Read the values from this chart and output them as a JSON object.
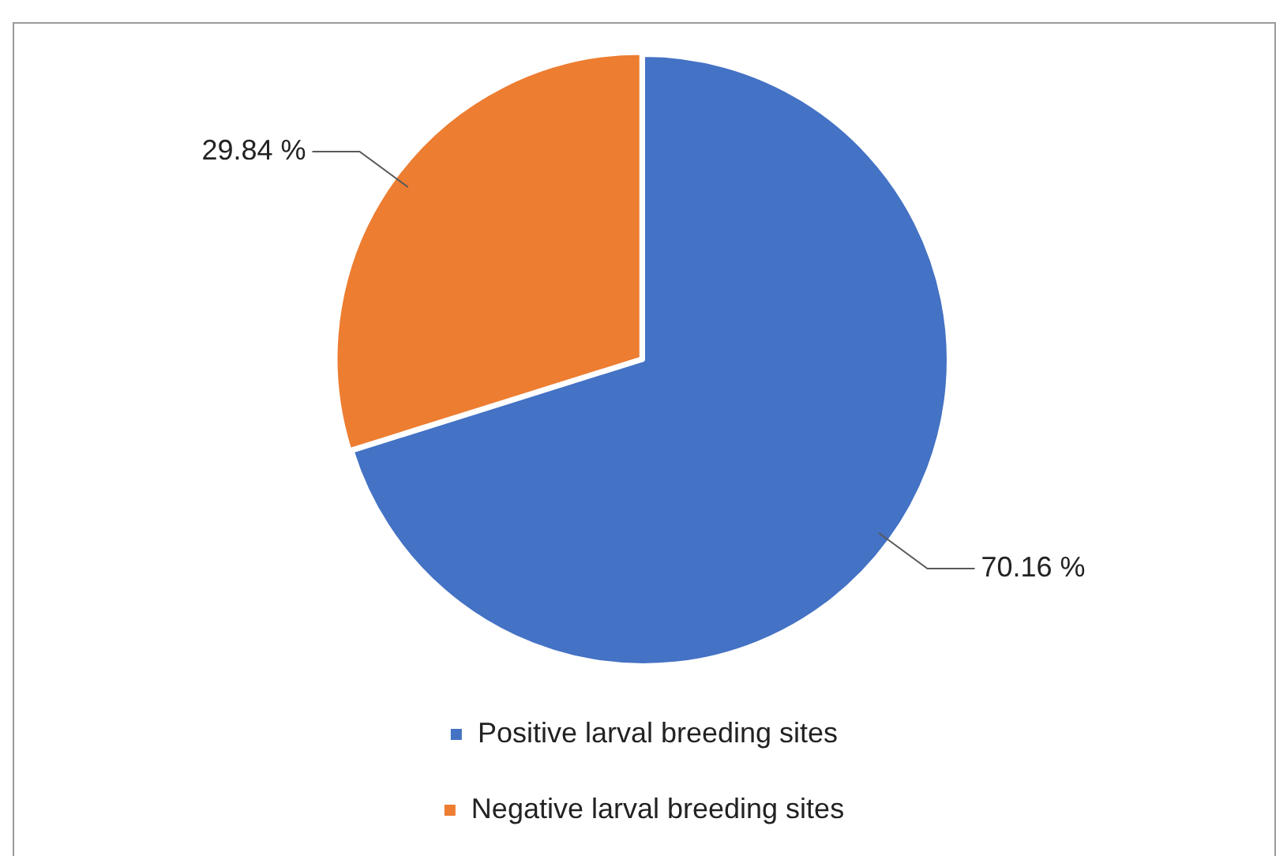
{
  "chart_data": {
    "type": "pie",
    "categories": [
      "Positive larval breeding sites",
      "Negative larval breeding sites"
    ],
    "values": [
      70.16,
      29.84
    ],
    "colors": [
      "#4472c4",
      "#ed7d31"
    ],
    "value_labels": [
      "70.16 %",
      "29.84 %"
    ],
    "legend": "bottom"
  }
}
